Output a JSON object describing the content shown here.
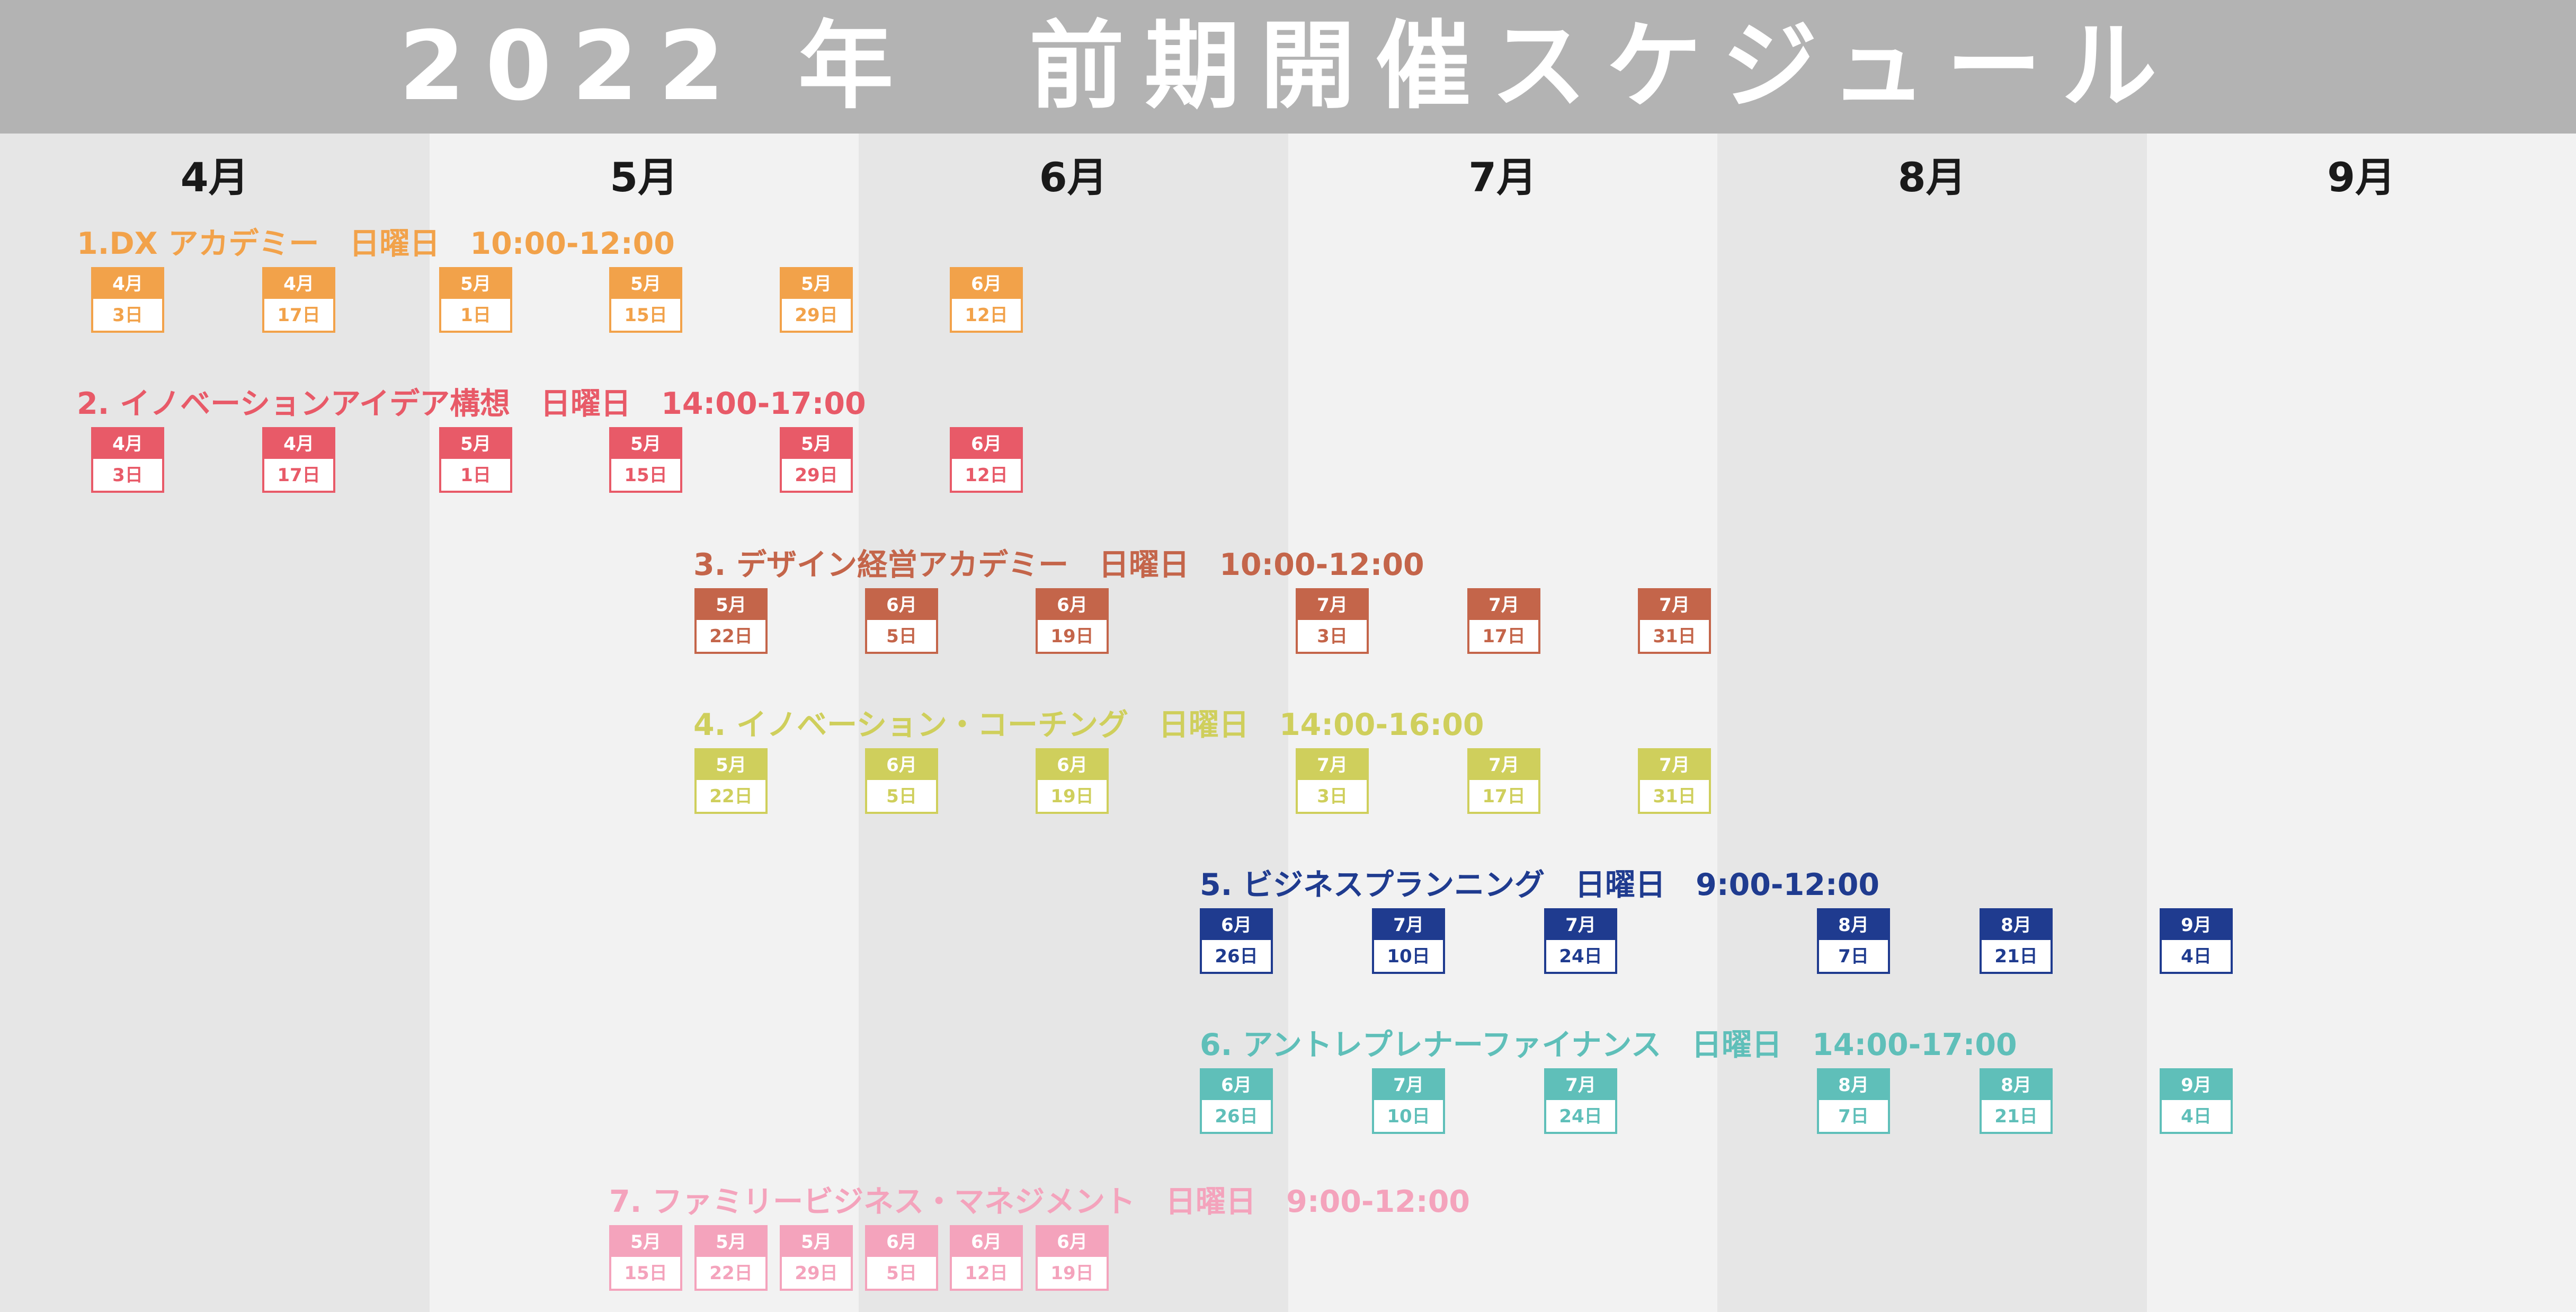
{
  "title": "2022 年　前期開催スケジュール",
  "months": [
    "4月",
    "5月",
    "6月",
    "7月",
    "8月",
    "9月"
  ],
  "sections": [
    {
      "title": "1.DX アカデミー　日曜日　10:00-12:00",
      "color": "#f2a24a",
      "sessions": [
        {
          "month": "4月",
          "day": "3日"
        },
        {
          "month": "4月",
          "day": "17日"
        },
        {
          "month": "5月",
          "day": "1日"
        },
        {
          "month": "5月",
          "day": "15日"
        },
        {
          "month": "5月",
          "day": "29日"
        },
        {
          "month": "6月",
          "day": "12日"
        }
      ]
    },
    {
      "title": "2. イノベーションアイデア構想　日曜日　14:00-17:00",
      "color": "#e85a68",
      "sessions": [
        {
          "month": "4月",
          "day": "3日"
        },
        {
          "month": "4月",
          "day": "17日"
        },
        {
          "month": "5月",
          "day": "1日"
        },
        {
          "month": "5月",
          "day": "15日"
        },
        {
          "month": "5月",
          "day": "29日"
        },
        {
          "month": "6月",
          "day": "12日"
        }
      ]
    },
    {
      "title": "3. デザイン経営アカデミー　日曜日　10:00-12:00",
      "color": "#c4654a",
      "sessions": [
        {
          "month": "5月",
          "day": "22日"
        },
        {
          "month": "6月",
          "day": "5日"
        },
        {
          "month": "6月",
          "day": "19日"
        },
        {
          "month": "7月",
          "day": "3日"
        },
        {
          "month": "7月",
          "day": "17日"
        },
        {
          "month": "7月",
          "day": "31日"
        }
      ]
    },
    {
      "title": "4. イノベーション・コーチング　日曜日　14:00-16:00",
      "color": "#cfcf5c",
      "sessions": [
        {
          "month": "5月",
          "day": "22日"
        },
        {
          "month": "6月",
          "day": "5日"
        },
        {
          "month": "6月",
          "day": "19日"
        },
        {
          "month": "7月",
          "day": "3日"
        },
        {
          "month": "7月",
          "day": "17日"
        },
        {
          "month": "7月",
          "day": "31日"
        }
      ]
    },
    {
      "title": "5. ビジネスプランニング　日曜日　9:00-12:00",
      "color": "#1f3b8f",
      "sessions": [
        {
          "month": "6月",
          "day": "26日"
        },
        {
          "month": "7月",
          "day": "10日"
        },
        {
          "month": "7月",
          "day": "24日"
        },
        {
          "month": "8月",
          "day": "7日"
        },
        {
          "month": "8月",
          "day": "21日"
        },
        {
          "month": "9月",
          "day": "4日"
        }
      ]
    },
    {
      "title": "6. アントレプレナーファイナンス　日曜日　14:00-17:00",
      "color": "#5fbfb9",
      "sessions": [
        {
          "month": "6月",
          "day": "26日"
        },
        {
          "month": "7月",
          "day": "10日"
        },
        {
          "month": "7月",
          "day": "24日"
        },
        {
          "month": "8月",
          "day": "7日"
        },
        {
          "month": "8月",
          "day": "21日"
        },
        {
          "month": "9月",
          "day": "4日"
        }
      ]
    },
    {
      "title": "7. ファミリービジネス・マネジメント　日曜日　9:00-12:00",
      "color": "#f4a3bc",
      "sessions": [
        {
          "month": "5月",
          "day": "15日"
        },
        {
          "month": "5月",
          "day": "22日"
        },
        {
          "month": "5月",
          "day": "29日"
        },
        {
          "month": "6月",
          "day": "5日"
        },
        {
          "month": "6月",
          "day": "12日"
        },
        {
          "month": "6月",
          "day": "19日"
        }
      ]
    }
  ]
}
